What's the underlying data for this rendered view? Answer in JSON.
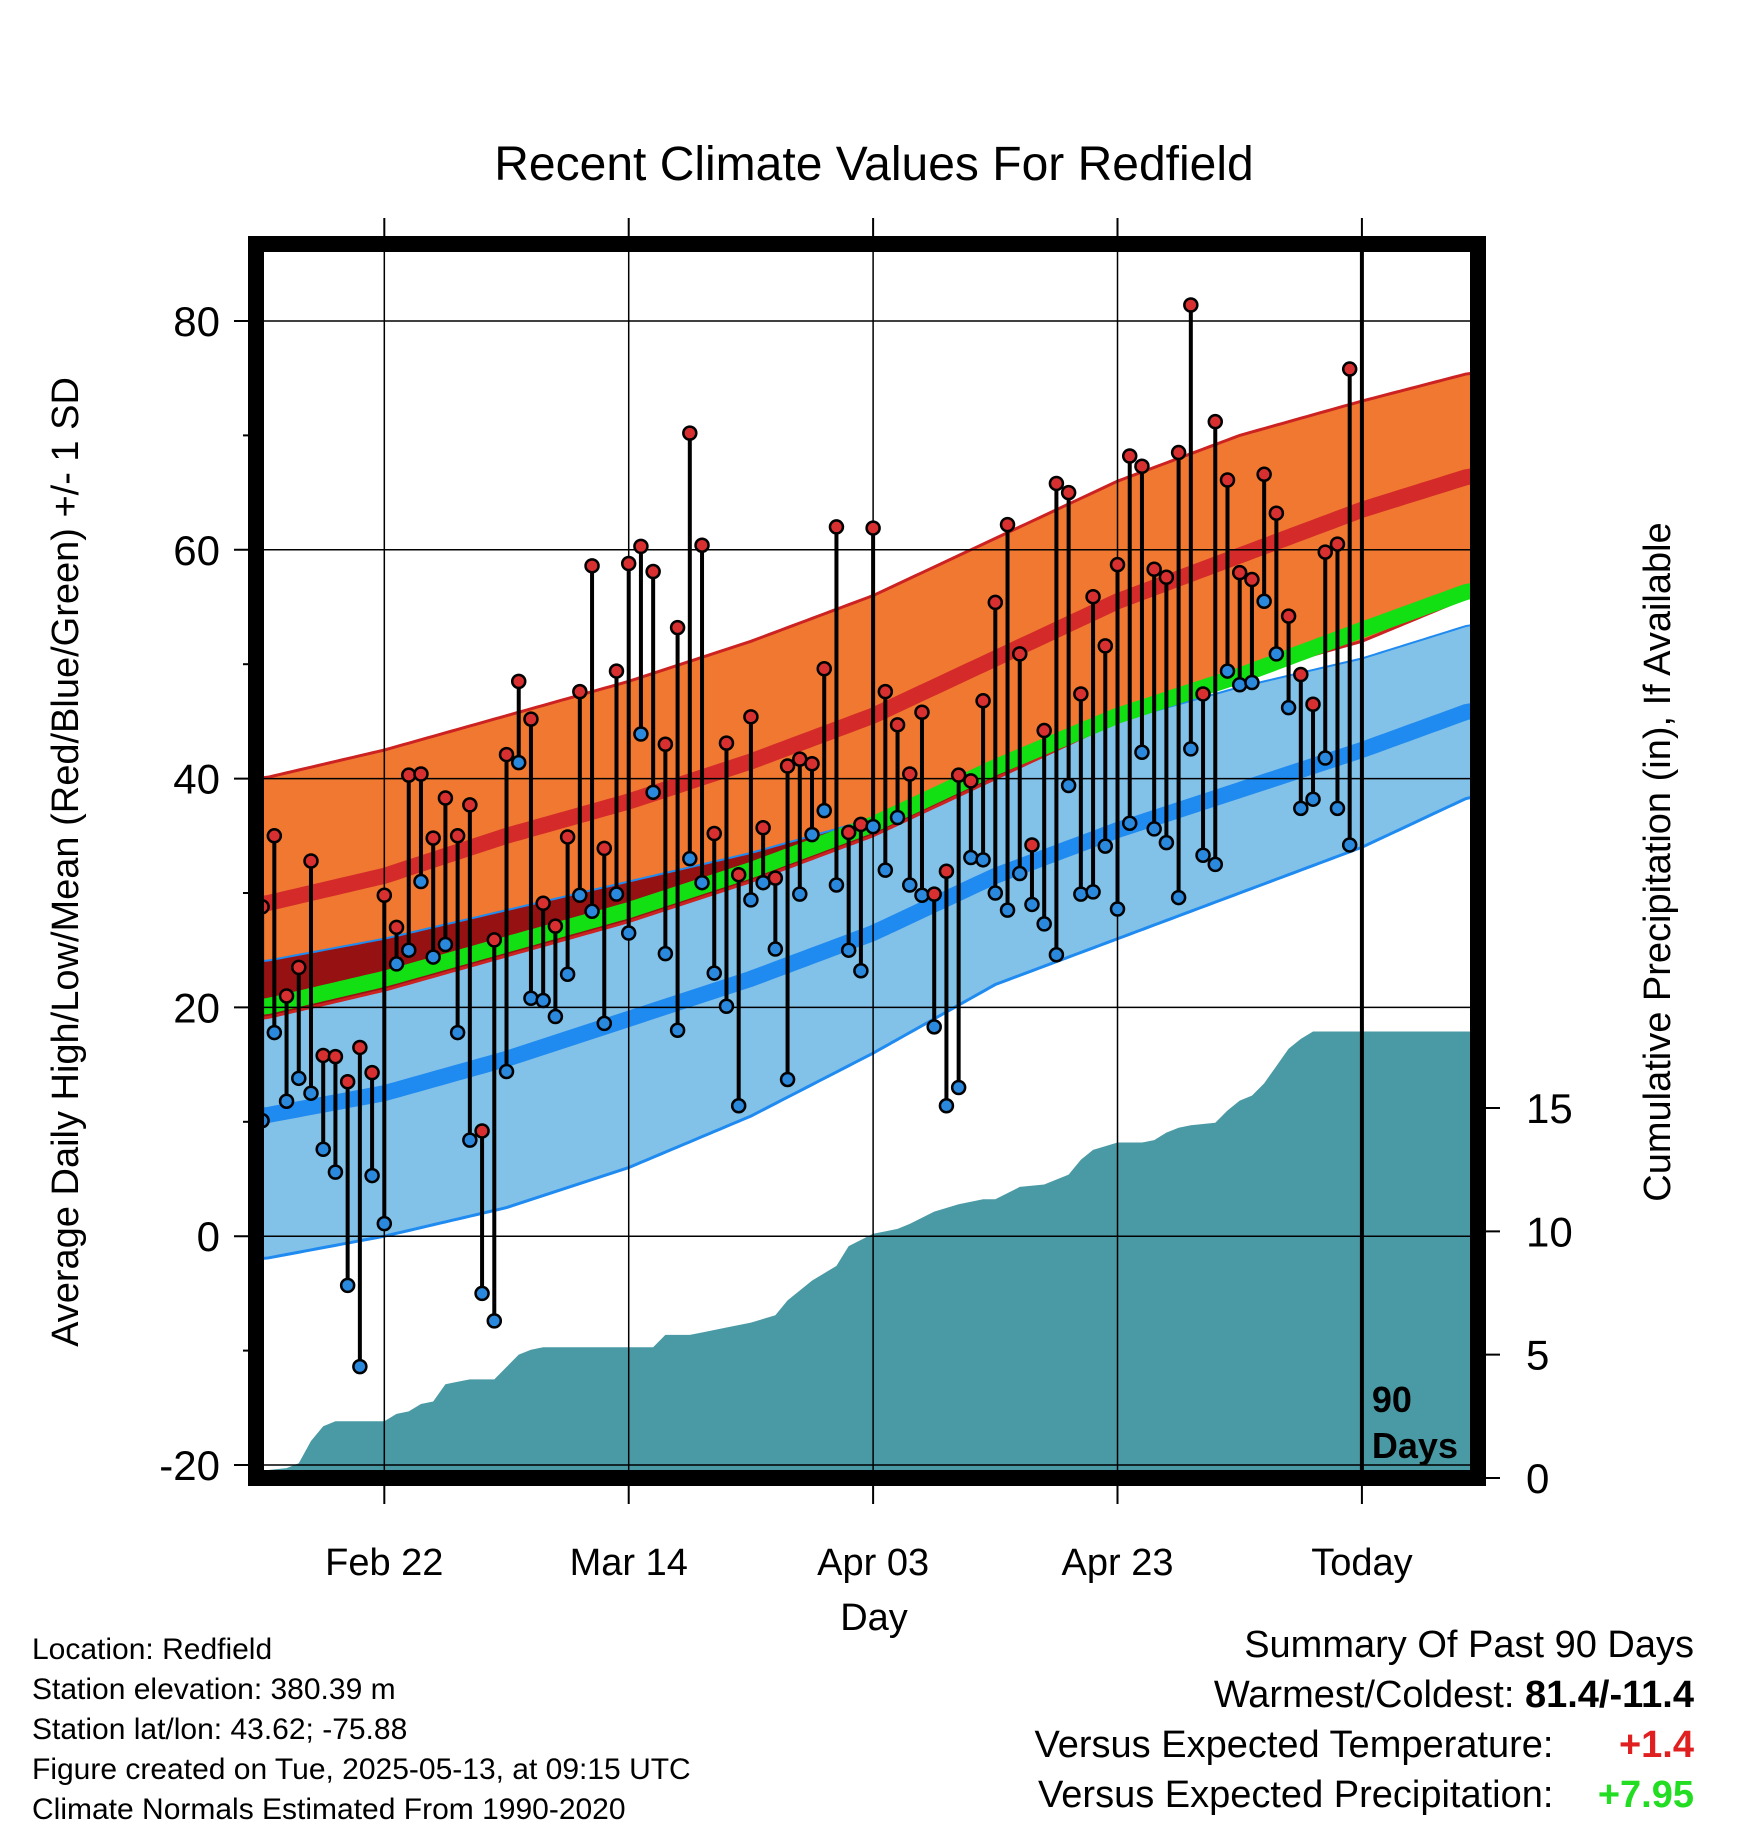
{
  "chart_data": {
    "type": "line",
    "title": "Recent Climate Values For Redfield",
    "xlabel": "Day",
    "ylabel": "Average Daily High/Low/Mean (Red/Blue/Green) +/- 1 SD",
    "y2label": "Cumulative Precipitation (in), If Available",
    "ylim": [
      -20,
      80
    ],
    "y2lim": [
      0,
      20
    ],
    "yticks": [
      -20,
      0,
      20,
      40,
      60,
      80
    ],
    "y2ticks": [
      0,
      5,
      10,
      15
    ],
    "x_tick_labels": [
      {
        "day": 10,
        "label": "Feb 22"
      },
      {
        "day": 30,
        "label": "Mar 14"
      },
      {
        "day": 50,
        "label": "Apr 03"
      },
      {
        "day": 70,
        "label": "Apr 23"
      },
      {
        "day": 90,
        "label": "Today"
      }
    ],
    "xlim": [
      -0.5,
      99.5
    ],
    "today_marker": {
      "day": 90,
      "label_line1": "90",
      "label_line2": "Days"
    },
    "grid": true,
    "colors": {
      "high_band": "#f07830",
      "high_line": "#d42a2a",
      "high_sd_edge": "#cc2222",
      "low_band": "#82c1e8",
      "low_line": "#1f8af0",
      "low_sd_edge": "#1f8af0",
      "overlap_band": "#961212",
      "mean_line": "#12e012",
      "precip": "#4a9aa5",
      "high_point": "#d83030",
      "low_point": "#2a88dd"
    },
    "normals": {
      "days": [
        0,
        10,
        20,
        30,
        40,
        50,
        60,
        70,
        80,
        90,
        99
      ],
      "high_mean": [
        29,
        31.5,
        35,
        38,
        41.5,
        45.5,
        50.5,
        55.5,
        59.5,
        63.5,
        66.5
      ],
      "high_plus_sd": [
        40,
        42.5,
        45.5,
        48.5,
        52,
        56,
        61,
        66,
        70,
        73,
        75.5
      ],
      "high_minus_sd": [
        19,
        21.5,
        24.5,
        27.5,
        31,
        35,
        40,
        45,
        49,
        52,
        56
      ],
      "low_mean": [
        10.5,
        12.5,
        15.5,
        19,
        22.5,
        26.5,
        31.5,
        35.5,
        39,
        42.5,
        46
      ],
      "low_plus_sd": [
        24,
        26,
        28.5,
        31,
        33.5,
        36.5,
        41,
        45,
        48,
        50.5,
        53.5
      ],
      "low_minus_sd": [
        -2,
        0,
        2.5,
        6,
        10.5,
        16,
        22,
        26,
        30,
        34,
        38.5
      ],
      "daily_mean": [
        20,
        22.5,
        25.5,
        28.5,
        32,
        36,
        41,
        45.5,
        49,
        53,
        56.5
      ]
    },
    "daily": {
      "high": [
        28.8,
        35.0,
        21.0,
        23.5,
        32.8,
        15.8,
        15.7,
        13.5,
        16.5,
        14.3,
        29.8,
        27.0,
        40.3,
        40.4,
        34.8,
        38.3,
        35.0,
        37.7,
        9.2,
        25.9,
        42.1,
        48.5,
        45.2,
        29.1,
        27.1,
        34.9,
        47.6,
        58.6,
        33.9,
        49.4,
        58.8,
        60.3,
        58.1,
        43.0,
        53.2,
        70.2,
        60.4,
        35.2,
        43.1,
        31.6,
        45.4,
        35.7,
        31.3,
        41.1,
        41.7,
        41.3,
        49.6,
        62.0,
        35.3,
        36.0,
        61.9,
        47.6,
        44.7,
        40.4,
        45.8,
        29.9,
        31.9,
        40.3,
        39.8,
        46.8,
        55.4,
        62.2,
        50.9,
        34.2,
        44.2,
        65.8,
        65.0,
        47.4,
        55.9,
        51.6,
        58.7,
        68.2,
        67.3,
        58.3,
        57.6,
        68.5,
        81.4,
        47.4,
        71.2,
        66.1,
        58.0,
        57.4,
        66.6,
        63.2,
        54.2,
        49.1,
        46.5,
        59.8,
        60.5,
        75.8
      ],
      "low": [
        10.1,
        17.8,
        11.8,
        13.8,
        12.5,
        7.6,
        5.6,
        -4.3,
        -11.4,
        5.3,
        1.1,
        23.8,
        25.0,
        31.0,
        24.4,
        25.5,
        17.8,
        8.4,
        -5.0,
        -7.4,
        14.4,
        41.4,
        20.8,
        20.6,
        19.2,
        22.9,
        29.8,
        28.4,
        18.6,
        29.9,
        26.5,
        43.9,
        38.8,
        24.7,
        18.0,
        33.0,
        30.9,
        23.0,
        20.1,
        11.4,
        29.4,
        30.9,
        25.1,
        13.7,
        29.9,
        35.1,
        37.2,
        30.7,
        25.0,
        23.2,
        35.8,
        32.0,
        36.6,
        30.7,
        29.8,
        18.3,
        11.4,
        13.0,
        33.1,
        32.9,
        30.0,
        28.5,
        31.7,
        29.0,
        27.3,
        24.6,
        39.4,
        29.9,
        30.1,
        34.1,
        28.6,
        36.1,
        42.3,
        35.6,
        34.4,
        29.6,
        42.6,
        33.3,
        32.5,
        49.4,
        48.2,
        48.4,
        55.5,
        50.9,
        46.2,
        37.4,
        38.2,
        41.8,
        37.4,
        34.2
      ]
    },
    "precip_cumulative": {
      "days": [
        0,
        2,
        3,
        4,
        5,
        6,
        9,
        10,
        11,
        12,
        13,
        14,
        15,
        16,
        17,
        18,
        19,
        21,
        22,
        23,
        24,
        26,
        28,
        32,
        33,
        35,
        36,
        38,
        40,
        42,
        43,
        45,
        47,
        48,
        50,
        51,
        52,
        53,
        55,
        57,
        59,
        60,
        62,
        64,
        66,
        67,
        68,
        70,
        72,
        73,
        74,
        75,
        76,
        78,
        79,
        80,
        81,
        82,
        83,
        84,
        85,
        86,
        87,
        90,
        99
      ],
      "values": [
        0.3,
        0.4,
        0.6,
        1.5,
        2.1,
        2.3,
        2.3,
        2.3,
        2.6,
        2.7,
        3.0,
        3.1,
        3.8,
        3.9,
        4.0,
        4.0,
        4.0,
        5.0,
        5.2,
        5.3,
        5.3,
        5.3,
        5.3,
        5.3,
        5.8,
        5.8,
        5.9,
        6.1,
        6.3,
        6.6,
        7.2,
        8.0,
        8.6,
        9.4,
        9.9,
        10.0,
        10.1,
        10.3,
        10.8,
        11.1,
        11.3,
        11.3,
        11.8,
        11.9,
        12.3,
        12.9,
        13.3,
        13.6,
        13.6,
        13.7,
        14.0,
        14.2,
        14.3,
        14.4,
        14.9,
        15.3,
        15.5,
        16.0,
        16.7,
        17.4,
        17.8,
        18.1,
        18.1,
        18.1,
        18.1
      ]
    }
  },
  "info": {
    "location": "Location: Redfield",
    "elevation": "Station elevation: 380.39 m",
    "latlon": "Station lat/lon: 43.62; -75.88",
    "created": "Figure created on Tue, 2025-05-13, at 09:15 UTC",
    "normals": "Climate Normals Estimated From 1990-2020"
  },
  "summary": {
    "title": "Summary Of Past 90 Days",
    "warmest_label": "Warmest/Coldest:",
    "warmest_value": "81.4/-11.4",
    "temp_label": "Versus Expected Temperature:",
    "temp_value": "+1.4",
    "temp_color": "#e02020",
    "precip_label": "Versus Expected Precipitation:",
    "precip_value": "+7.95",
    "precip_color": "#22dd22"
  }
}
